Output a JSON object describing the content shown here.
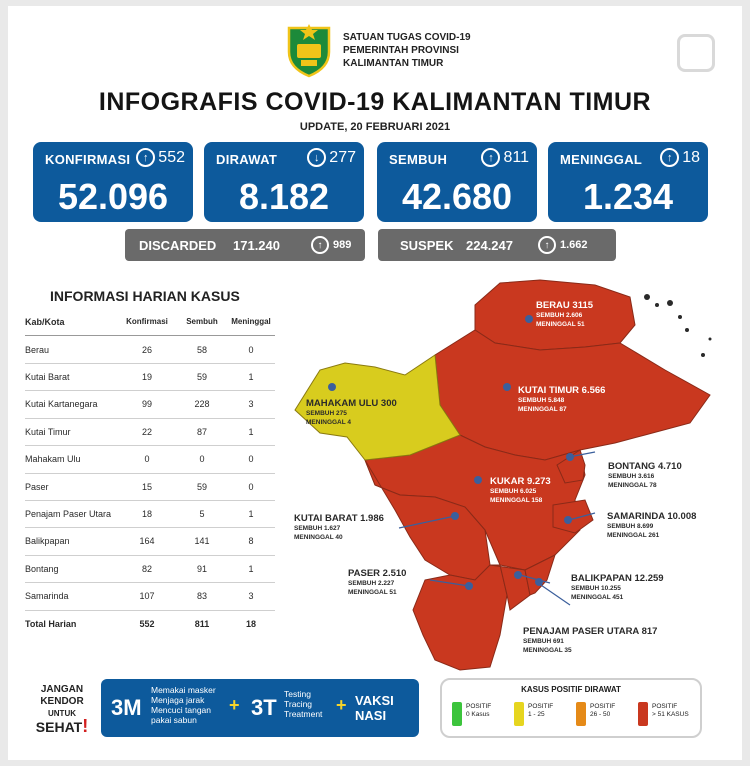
{
  "header": {
    "org_lines": [
      "SATUAN TUGAS COVID-19",
      "PEMERINTAH PROVINSI",
      "KALIMANTAN TIMUR"
    ],
    "title": "INFOGRAFIS COVID-19 KALIMANTAN TIMUR",
    "update": "UPDATE, 20 FEBRUARI 2021"
  },
  "stats": [
    {
      "label": "KONFIRMASI",
      "delta": "552",
      "dir": "up",
      "value": "52.096"
    },
    {
      "label": "DIRAWAT",
      "delta": "277",
      "dir": "down",
      "value": "8.182"
    },
    {
      "label": "SEMBUH",
      "delta": "811",
      "dir": "up",
      "value": "42.680"
    },
    {
      "label": "MENINGGAL",
      "delta": "18",
      "dir": "up",
      "value": "1.234"
    }
  ],
  "secondary": [
    {
      "label": "DISCARDED",
      "value": "171.240",
      "delta": "989"
    },
    {
      "label": "SUSPEK",
      "value": "224.247",
      "delta": "1.662"
    }
  ],
  "arrow_up": "↑",
  "arrow_down": "↓",
  "table": {
    "title": "INFORMASI HARIAN KASUS",
    "headers": [
      "Kab/Kota",
      "Konfirmasi",
      "Sembuh",
      "Meninggal"
    ],
    "rows": [
      [
        "Berau",
        "26",
        "58",
        "0"
      ],
      [
        "Kutai Barat",
        "19",
        "59",
        "1"
      ],
      [
        "Kutai Kartanegara",
        "99",
        "228",
        "3"
      ],
      [
        "Kutai Timur",
        "22",
        "87",
        "1"
      ],
      [
        "Mahakam Ulu",
        "0",
        "0",
        "0"
      ],
      [
        "Paser",
        "15",
        "59",
        "0"
      ],
      [
        "Penajam Paser Utara",
        "18",
        "5",
        "1"
      ],
      [
        "Balikpapan",
        "164",
        "141",
        "8"
      ],
      [
        "Bontang",
        "82",
        "91",
        "1"
      ],
      [
        "Samarinda",
        "107",
        "83",
        "3"
      ]
    ],
    "total": [
      "Total Harian",
      "552",
      "811",
      "18"
    ]
  },
  "map_labels": [
    {
      "name": "BERAU 3115",
      "sembuh": "SEMBUH 2.606",
      "meninggal": "MENINGGAL 51"
    },
    {
      "name": "MAHAKAM ULU 300",
      "sembuh": "SEMBUH 275",
      "meninggal": "MENINGGAL 4"
    },
    {
      "name": "KUTAI TIMUR 6.566",
      "sembuh": "SEMBUH 5.848",
      "meninggal": "MENINGGAL 87"
    },
    {
      "name": "BONTANG 4.710",
      "sembuh": "SEMBUH 3.616",
      "meninggal": "MENINGGAL 78"
    },
    {
      "name": "KUKAR 9.273",
      "sembuh": "SEMBUH 6.025",
      "meninggal": "MENINGGAL 158"
    },
    {
      "name": "KUTAI BARAT 1.986",
      "sembuh": "SEMBUH 1.627",
      "meninggal": "MENINGGAL 40"
    },
    {
      "name": "SAMARINDA 10.008",
      "sembuh": "SEMBUH 8.699",
      "meninggal": "MENINGGAL 261"
    },
    {
      "name": "PASER 2.510",
      "sembuh": "SEMBUH 2.227",
      "meninggal": "MENINGGAL 51"
    },
    {
      "name": "BALIKPAPAN 12.259",
      "sembuh": "SEMBUH 10.255",
      "meninggal": "MENINGGAL 451"
    },
    {
      "name": "PENAJAM PASER UTARA 817",
      "sembuh": "SEMBUH 691",
      "meninggal": "MENINGGAL 35"
    }
  ],
  "footer": {
    "jangan": [
      "JANGAN",
      "KENDOR",
      "UNTUK",
      "SEHAT"
    ],
    "exclaim": "!",
    "m3": "3M",
    "m3_text": [
      "Memakai masker",
      "Menjaga jarak",
      "Mencuci tangan",
      "pakai sabun"
    ],
    "plus": "+",
    "t3": "3T",
    "t3_text": [
      "Testing",
      "Tracing",
      "Treatment"
    ],
    "vaksi": [
      "VAKSI",
      "NASI"
    ]
  },
  "legend": {
    "title": "KASUS POSITIF DIRAWAT",
    "items": [
      {
        "line1": "POSITIF",
        "line2": "0 Kasus",
        "color": "#3cc43c"
      },
      {
        "line1": "POSITIF",
        "line2": "1 - 25",
        "color": "#e6d51f"
      },
      {
        "line1": "POSITIF",
        "line2": "26 - 50",
        "color": "#e58a18"
      },
      {
        "line1": "POSITIF",
        "line2": "> 51 KASUS",
        "color": "#c9381f"
      }
    ]
  },
  "colors": {
    "primary": "#0d5a9c",
    "map_red": "#c9381f",
    "map_yellow": "#d8cc1e",
    "grey": "#6a6a6a"
  }
}
